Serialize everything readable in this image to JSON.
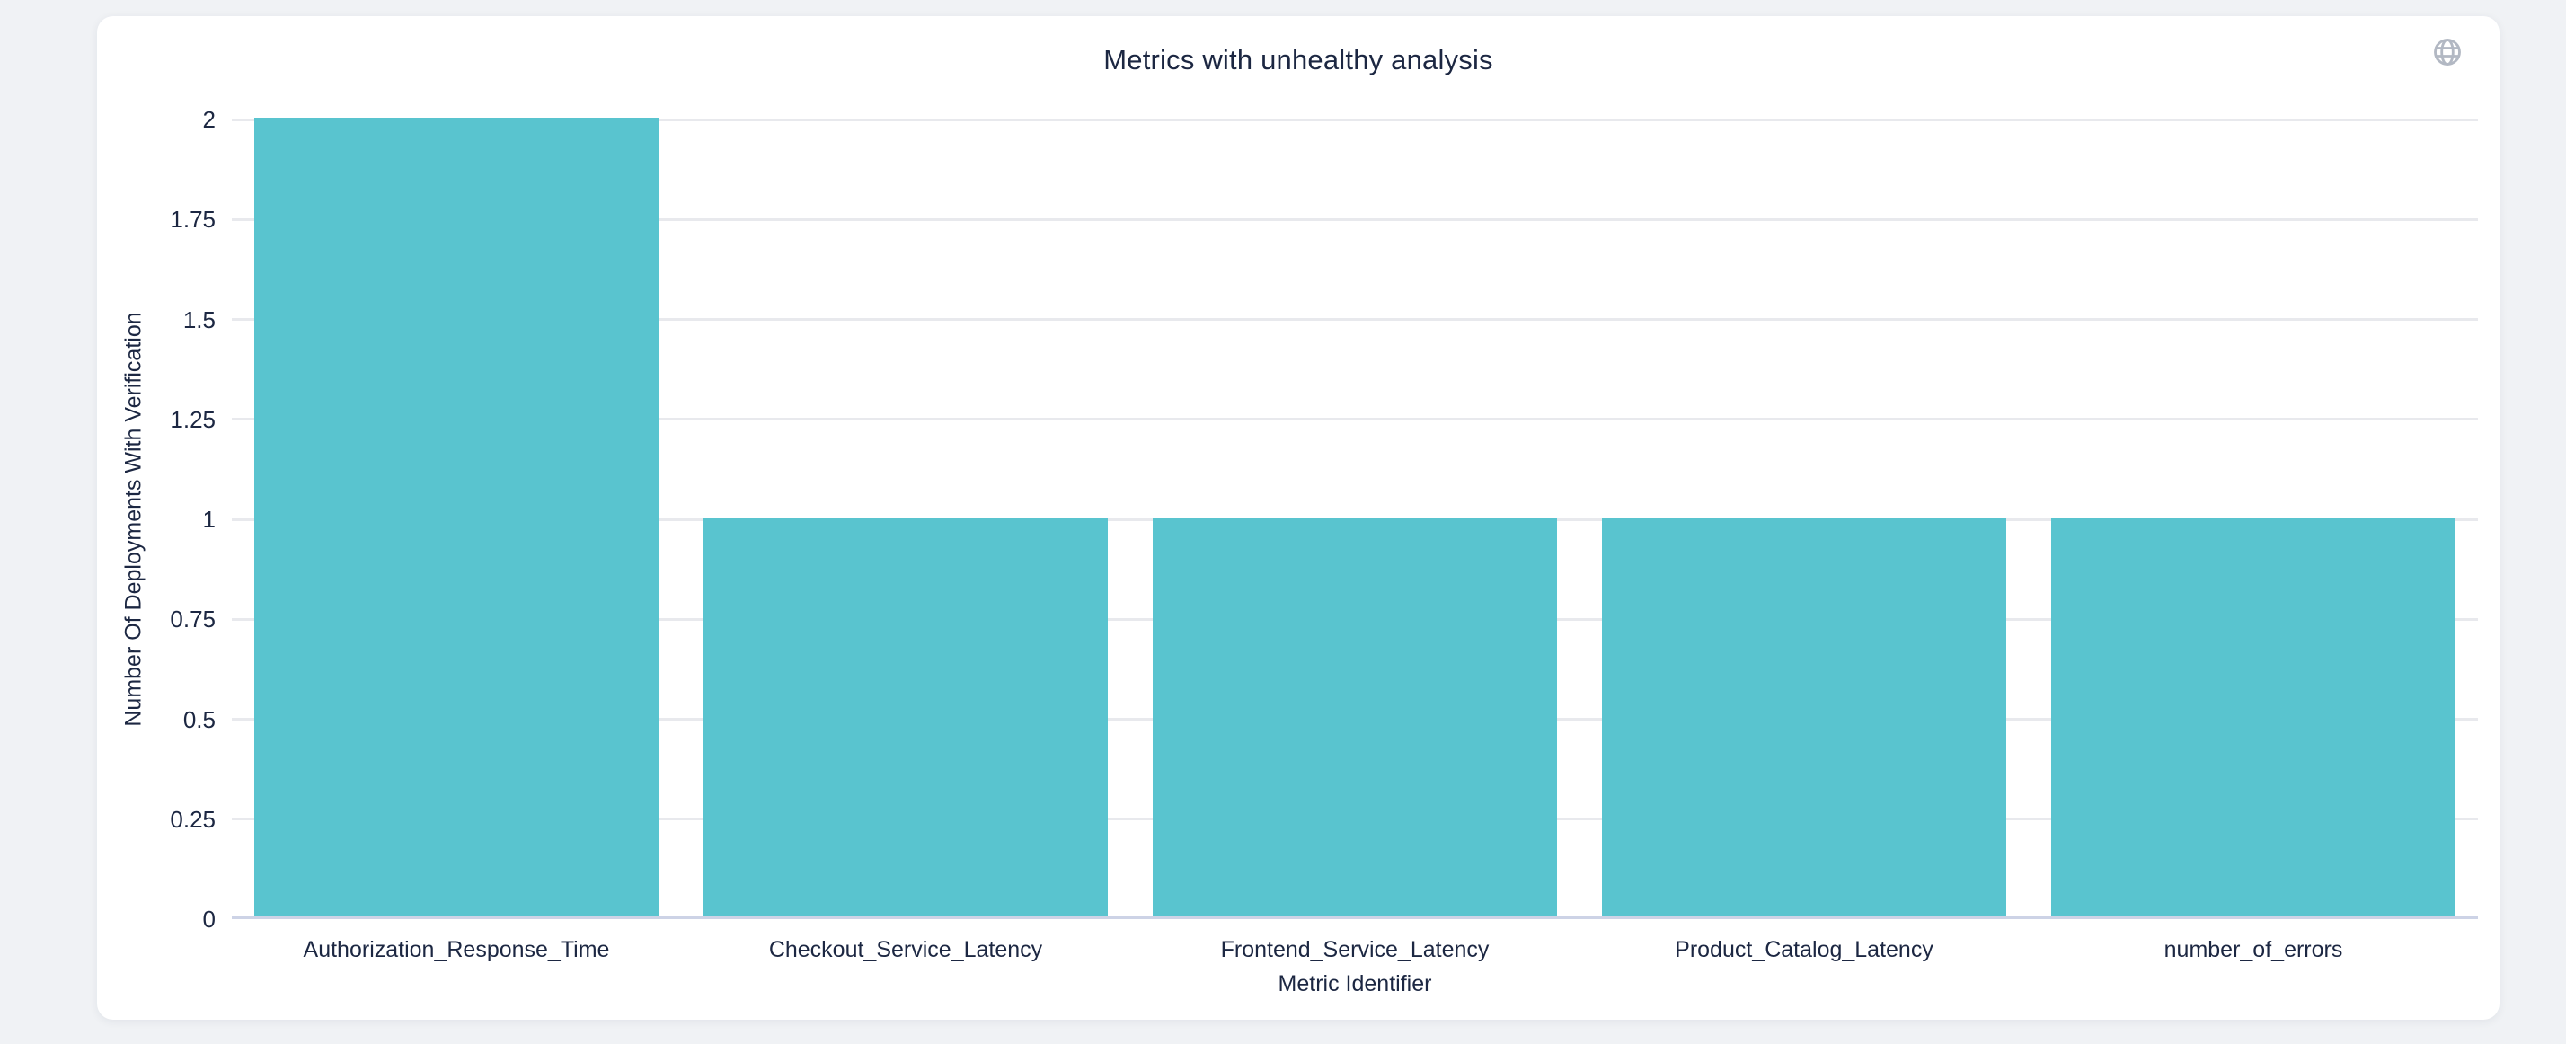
{
  "chart_data": {
    "type": "bar",
    "title": "Metrics with unhealthy analysis",
    "categories": [
      "Authorization_Response_Time",
      "Checkout_Service_Latency",
      "Frontend_Service_Latency",
      "Product_Catalog_Latency",
      "number_of_errors"
    ],
    "values": [
      2,
      1,
      1,
      1,
      1
    ],
    "xlabel": "Metric Identifier",
    "ylabel": "Number Of Deployments With Verification",
    "ylim": [
      0,
      2
    ],
    "yticks": [
      0,
      0.25,
      0.5,
      0.75,
      1,
      1.25,
      1.5,
      1.75,
      2
    ],
    "grid": true,
    "legend": "none",
    "bar_color": "#59c4cf"
  },
  "icons": {
    "globe": "globe-icon"
  },
  "colors": {
    "bar": "#59c4cf",
    "text": "#1c2742",
    "gridline": "#e8e9ed",
    "axis_line": "#cdd3e6",
    "icon": "#b2b8c3",
    "card_background": "#ffffff",
    "page_background": "#f0f2f5"
  }
}
